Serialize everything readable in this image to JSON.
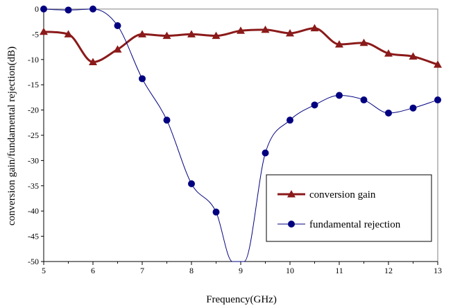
{
  "chart_data": {
    "type": "line",
    "xlabel": "Frequency(GHz)",
    "ylabel": "conversion gain/fundamental rejection(dB)",
    "xlim": [
      5,
      13
    ],
    "ylim": [
      -50,
      0
    ],
    "x_ticks": [
      "5",
      "6",
      "7",
      "8",
      "9",
      "10",
      "11",
      "12",
      "13"
    ],
    "y_ticks": [
      "0",
      "-5",
      "-10",
      "-15",
      "-20",
      "-25",
      "-30",
      "-35",
      "-40",
      "-45",
      "-50"
    ],
    "grid": false,
    "legend_position": "bottom-right",
    "series": [
      {
        "name": "conversion gain",
        "marker": "triangle",
        "color": "#8B1A1A",
        "x": [
          5,
          5.5,
          6,
          6.5,
          7,
          7.5,
          8,
          8.5,
          9,
          9.5,
          10,
          10.5,
          11,
          11.5,
          12,
          12.5,
          13
        ],
        "values": [
          -4.5,
          -5,
          -10.5,
          -8,
          -5,
          -5.3,
          -5,
          -5.3,
          -4.3,
          -4.1,
          -4.8,
          -3.8,
          -7,
          -6.7,
          -8.8,
          -9.4,
          -11
        ]
      },
      {
        "name": "fundamental rejection",
        "marker": "circle",
        "color": "#000080",
        "x": [
          5,
          5.5,
          6,
          6.5,
          7,
          7.5,
          8,
          8.5,
          8.83,
          9.07,
          9.5,
          10,
          10.5,
          11,
          11.5,
          12,
          12.5,
          13
        ],
        "values": [
          0,
          -0.2,
          0,
          -3.3,
          -13.8,
          -22,
          -34.6,
          -40.2,
          -50,
          -50,
          -28.5,
          -22,
          -19,
          -17.1,
          -18,
          -20.6,
          -19.6,
          -18
        ]
      }
    ]
  }
}
